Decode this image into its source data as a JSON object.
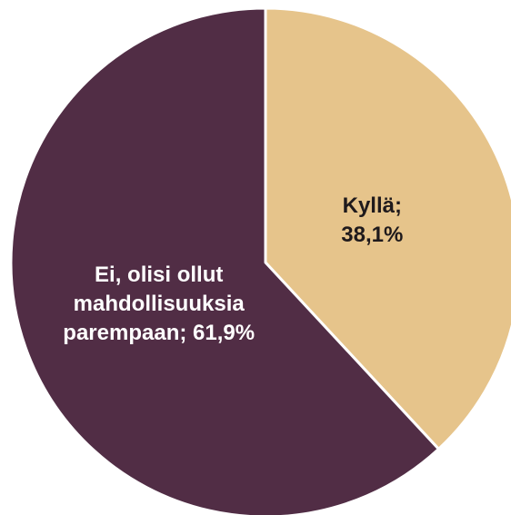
{
  "chart_data": {
    "type": "pie",
    "values": [
      38.1,
      61.9
    ],
    "value_labels": [
      "Kyllä; 38,1%",
      "Ei, olisi ollut mahdollisuuksia parempaan; 61,9%"
    ],
    "colors": [
      "#e6c48b",
      "#512d45"
    ]
  }
}
